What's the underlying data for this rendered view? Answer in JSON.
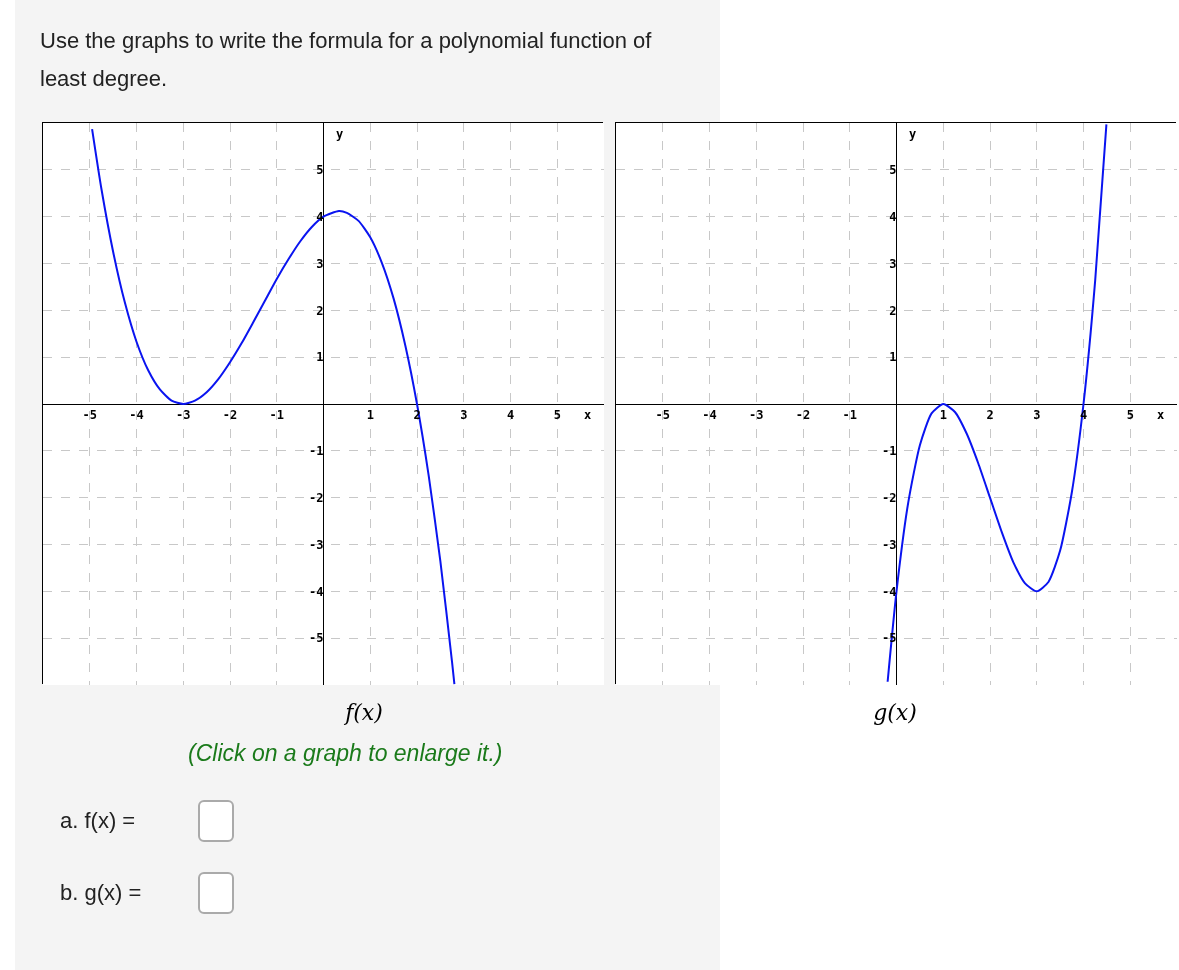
{
  "chart_data": [
    {
      "type": "line",
      "title": "f(x)",
      "xlabel": "x",
      "ylabel": "y",
      "annotations": [
        "Use the graphs to write the formula for a polynomial function of least degree.",
        "(Click on a graph to enlarge it.)",
        "a. f(x) =",
        "b. g(x) ="
      ],
      "xlim": [
        -6,
        6
      ],
      "ylim": [
        -6,
        6
      ],
      "xticks": [
        -5,
        -4,
        -3,
        -2,
        -1,
        1,
        2,
        3,
        4,
        5
      ],
      "yticks": [
        -5,
        -4,
        -3,
        -2,
        -1,
        1,
        2,
        3,
        4,
        5
      ],
      "grid": true,
      "marker": "none",
      "line_style": "solid",
      "series": [
        {
          "color": "#0a14f0",
          "x": [
            -4.95,
            -4.75,
            -4.5,
            -4.25,
            -4,
            -3.75,
            -3.5,
            -3.25,
            -3,
            -2.75,
            -2.5,
            -2.25,
            -2,
            -1.75,
            -1.5,
            -1.25,
            -1,
            -0.75,
            -0.5,
            -0.25,
            0,
            0.33,
            0.5,
            0.75,
            1,
            1.25,
            1.5,
            1.75,
            2,
            2.25,
            2.5,
            2.75,
            2.8
          ],
          "values": [
            5.87,
            4.59,
            3.25,
            2.17,
            1.33,
            0.72,
            0.31,
            0.07,
            0,
            0.07,
            0.25,
            0.53,
            0.89,
            1.3,
            1.75,
            2.21,
            2.67,
            3.09,
            3.47,
            3.78,
            4,
            4.12,
            4.08,
            3.91,
            3.56,
            3.01,
            2.25,
            1.25,
            0,
            -1.53,
            -3.36,
            -5.51,
            -5.98
          ]
        }
      ]
    },
    {
      "type": "line",
      "title": "g(x)",
      "xlabel": "x",
      "ylabel": "y",
      "xlim": [
        -6,
        6
      ],
      "ylim": [
        -6,
        6
      ],
      "xticks": [
        -5,
        -4,
        -3,
        -2,
        -1,
        1,
        2,
        3,
        4,
        5
      ],
      "yticks": [
        -5,
        -4,
        -3,
        -2,
        -1,
        1,
        2,
        3,
        4,
        5
      ],
      "grid": true,
      "marker": "none",
      "line_style": "solid",
      "series": [
        {
          "color": "#0a14f0",
          "x": [
            -0.19,
            0,
            0.25,
            0.5,
            0.75,
            1,
            1.25,
            1.5,
            1.75,
            2,
            2.25,
            2.5,
            2.75,
            3,
            3.25,
            3.5,
            3.75,
            4,
            4.25,
            4.49
          ],
          "values": [
            -5.93,
            -4,
            -2.11,
            -0.88,
            -0.2,
            0,
            -0.17,
            -0.63,
            -1.27,
            -2,
            -2.73,
            -3.38,
            -3.83,
            -4,
            -3.8,
            -3.13,
            -1.89,
            0,
            2.64,
            5.97
          ]
        }
      ]
    }
  ]
}
